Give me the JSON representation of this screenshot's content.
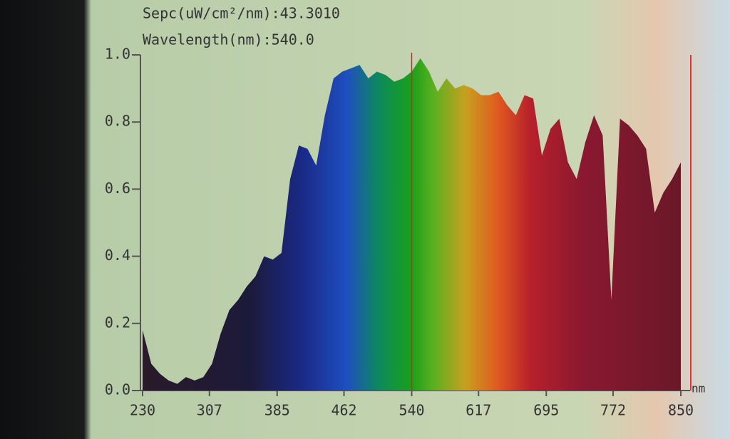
{
  "chart_data": {
    "type": "area",
    "title": "Sepc(uW/cm²/nm):43.3010",
    "subtitle": "Wavelength(nm):540.0",
    "x_unit": "nm",
    "cursor_x": 540,
    "x": [
      230,
      240,
      250,
      260,
      270,
      280,
      290,
      300,
      310,
      320,
      330,
      340,
      350,
      360,
      370,
      380,
      390,
      400,
      410,
      420,
      430,
      440,
      450,
      460,
      470,
      480,
      490,
      500,
      510,
      520,
      530,
      540,
      550,
      560,
      570,
      580,
      590,
      600,
      610,
      620,
      630,
      640,
      650,
      660,
      670,
      680,
      690,
      700,
      710,
      720,
      730,
      740,
      750,
      760,
      770,
      780,
      790,
      800,
      810,
      820,
      830,
      840,
      850
    ],
    "values": [
      0.18,
      0.08,
      0.05,
      0.03,
      0.02,
      0.04,
      0.03,
      0.04,
      0.08,
      0.17,
      0.24,
      0.27,
      0.31,
      0.34,
      0.4,
      0.39,
      0.41,
      0.63,
      0.73,
      0.72,
      0.67,
      0.82,
      0.93,
      0.95,
      0.96,
      0.97,
      0.93,
      0.95,
      0.94,
      0.92,
      0.93,
      0.95,
      0.99,
      0.95,
      0.89,
      0.93,
      0.9,
      0.91,
      0.9,
      0.88,
      0.88,
      0.89,
      0.85,
      0.82,
      0.88,
      0.87,
      0.7,
      0.78,
      0.81,
      0.68,
      0.63,
      0.74,
      0.82,
      0.76,
      0.27,
      0.81,
      0.79,
      0.76,
      0.72,
      0.53,
      0.59,
      0.63,
      0.68
    ],
    "xlim": [
      230,
      850
    ],
    "xticks": [
      230,
      307,
      385,
      462,
      540,
      617,
      695,
      772,
      850
    ],
    "ylim": [
      0,
      1
    ],
    "yticks": [
      {
        "value": 0,
        "label": "0.0"
      },
      0.2,
      0.4,
      0.6,
      0.8,
      {
        "value": 1,
        "label": "1.0"
      }
    ]
  }
}
